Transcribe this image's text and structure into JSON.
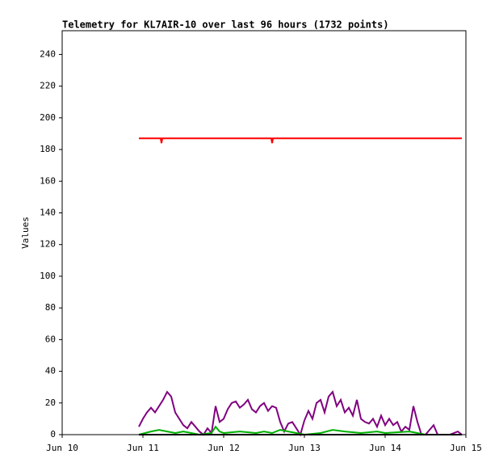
{
  "chart_data": {
    "type": "line",
    "title": "Telemetry for KL7AIR-10 over last 96 hours (1732 points)",
    "y_label": "Values",
    "xlim": [
      10,
      15
    ],
    "xticks": [
      {
        "value": 10,
        "label": "Jun 10"
      },
      {
        "value": 11,
        "label": "Jun 11"
      },
      {
        "value": 12,
        "label": "Jun 12"
      },
      {
        "value": 13,
        "label": "Jun 13"
      },
      {
        "value": 14,
        "label": "Jun 14"
      },
      {
        "value": 15,
        "label": "Jun 15"
      }
    ],
    "ylim": [
      0,
      255
    ],
    "yticks": [
      0,
      20,
      40,
      60,
      80,
      100,
      120,
      140,
      160,
      180,
      200,
      220,
      240
    ],
    "grid": false,
    "series": [
      {
        "color": "#ff0000",
        "x": [
          10.95,
          11.22,
          11.23,
          11.24,
          12.59,
          12.6,
          12.61,
          14.95
        ],
        "values": [
          187,
          187,
          184,
          187,
          187,
          184,
          187,
          187
        ]
      },
      {
        "color": "#800080",
        "x": [
          10.95,
          11.0,
          11.05,
          11.1,
          11.15,
          11.2,
          11.25,
          11.3,
          11.35,
          11.4,
          11.45,
          11.5,
          11.55,
          11.6,
          11.65,
          11.7,
          11.75,
          11.8,
          11.85,
          11.9,
          11.95,
          12.0,
          12.05,
          12.1,
          12.15,
          12.2,
          12.25,
          12.3,
          12.35,
          12.4,
          12.45,
          12.5,
          12.55,
          12.6,
          12.65,
          12.7,
          12.75,
          12.8,
          12.85,
          12.9,
          12.95,
          13.0,
          13.05,
          13.1,
          13.15,
          13.2,
          13.25,
          13.3,
          13.35,
          13.4,
          13.45,
          13.5,
          13.55,
          13.6,
          13.65,
          13.7,
          13.75,
          13.8,
          13.85,
          13.9,
          13.95,
          14.0,
          14.05,
          14.1,
          14.15,
          14.2,
          14.25,
          14.3,
          14.35,
          14.4,
          14.45,
          14.5,
          14.55,
          14.6,
          14.65,
          14.7,
          14.8,
          14.9,
          14.95
        ],
        "values": [
          5,
          10,
          14,
          17,
          14,
          18,
          22,
          27,
          24,
          14,
          10,
          6,
          4,
          8,
          5,
          2,
          0,
          4,
          1,
          18,
          8,
          10,
          16,
          20,
          21,
          17,
          19,
          22,
          16,
          14,
          18,
          20,
          15,
          18,
          17,
          8,
          2,
          7,
          8,
          4,
          0,
          9,
          15,
          10,
          20,
          22,
          14,
          24,
          27,
          18,
          22,
          14,
          17,
          12,
          22,
          10,
          8,
          7,
          10,
          5,
          12,
          6,
          10,
          6,
          8,
          2,
          5,
          3,
          18,
          8,
          0,
          0,
          3,
          6,
          0,
          0,
          0,
          2,
          0
        ]
      },
      {
        "color": "#00b000",
        "x": [
          10.95,
          11.1,
          11.2,
          11.3,
          11.4,
          11.5,
          11.6,
          11.7,
          11.85,
          11.9,
          11.95,
          12.0,
          12.2,
          12.4,
          12.5,
          12.6,
          12.7,
          12.8,
          12.9,
          13.0,
          13.2,
          13.35,
          13.5,
          13.7,
          13.9,
          14.0,
          14.3,
          14.5,
          14.95
        ],
        "values": [
          0,
          2,
          3,
          2,
          1,
          2,
          1,
          0,
          1,
          5,
          2,
          1,
          2,
          1,
          2,
          1,
          3,
          2,
          1,
          0,
          1,
          3,
          2,
          1,
          2,
          1,
          2,
          0,
          0
        ]
      },
      {
        "color": "#000000",
        "x": [
          10.95,
          14.95
        ],
        "values": [
          0,
          0
        ]
      }
    ]
  }
}
